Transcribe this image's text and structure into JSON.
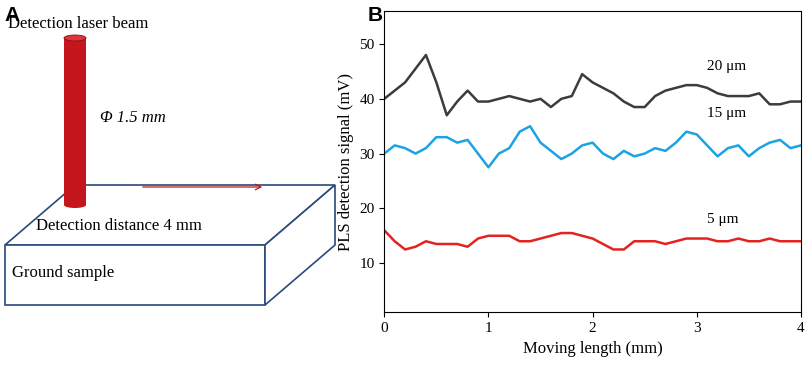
{
  "diagram": {
    "panel_label": "A",
    "beam_label": "Detection laser beam",
    "beam_diameter": "Φ 1.5 mm",
    "distance_label": "Detection distance 4 mm",
    "sample_label": "Ground sample"
  },
  "chart_data": {
    "type": "line",
    "panel_label": "B",
    "x_label": "Moving length (mm)",
    "y_label": "PLS detection signal (mV)",
    "x": [
      0,
      0.1,
      0.2,
      0.3,
      0.4,
      0.5,
      0.6,
      0.7,
      0.8,
      0.9,
      1.0,
      1.1,
      1.2,
      1.3,
      1.4,
      1.5,
      1.6,
      1.7,
      1.8,
      1.9,
      2.0,
      2.1,
      2.2,
      2.3,
      2.4,
      2.5,
      2.6,
      2.7,
      2.8,
      2.9,
      3.0,
      3.1,
      3.2,
      3.3,
      3.4,
      3.5,
      3.6,
      3.7,
      3.8,
      3.9,
      4.0
    ],
    "series": [
      {
        "name": "20 μm",
        "color": "#3c3c3c",
        "line_style": "solid",
        "values": [
          40,
          41.5,
          43,
          45.5,
          48,
          43,
          37,
          39.5,
          41.5,
          39.5,
          39.5,
          40,
          40.5,
          40,
          39.5,
          40,
          38.5,
          40,
          40.5,
          44.5,
          43,
          42,
          41,
          39.5,
          38.5,
          38.5,
          40.5,
          41.5,
          42,
          42.5,
          42.5,
          42,
          41,
          40.5,
          40.5,
          40.5,
          41,
          39,
          39,
          39.5,
          39.5
        ]
      },
      {
        "name": "15 μm",
        "color": "#1ca3e3",
        "line_style": "solid",
        "values": [
          30,
          31.5,
          31,
          30,
          31,
          33,
          33,
          32,
          32.5,
          30,
          27.5,
          30,
          31,
          34,
          35,
          32,
          30.5,
          29,
          30,
          31.5,
          32,
          30,
          29,
          30.5,
          29.5,
          30,
          31,
          30.5,
          32,
          34,
          33.5,
          31.5,
          29.5,
          31,
          31.5,
          29.5,
          31,
          32,
          32.5,
          31,
          31.5
        ]
      },
      {
        "name": "5 μm",
        "color": "#e3231f",
        "line_style": "solid",
        "values": [
          16,
          14,
          12.5,
          13,
          14,
          13.5,
          13.5,
          13.5,
          13,
          14.5,
          15,
          15,
          15,
          14,
          14,
          14.5,
          15,
          15.5,
          15.5,
          15,
          14.5,
          13.5,
          12.5,
          12.5,
          14,
          14,
          14,
          13.5,
          14,
          14.5,
          14.5,
          14.5,
          14,
          14,
          14.5,
          14,
          14,
          14.5,
          14,
          14,
          14
        ]
      }
    ],
    "xlim": [
      0,
      4
    ],
    "xticks": [
      0,
      1,
      2,
      3,
      4
    ],
    "ylim": [
      1,
      56
    ],
    "yticks": [
      10,
      20,
      30,
      40,
      50
    ],
    "grid": false
  }
}
